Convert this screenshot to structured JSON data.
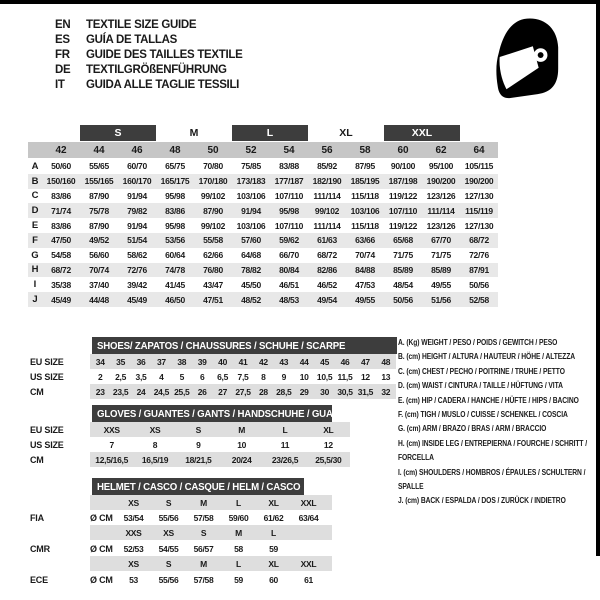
{
  "header": {
    "languages": [
      {
        "code": "EN",
        "title": "TEXTILE SIZE GUIDE"
      },
      {
        "code": "ES",
        "title": "GUÍA DE TALLAS"
      },
      {
        "code": "FR",
        "title": "GUIDE DES TAILLES TEXTILE"
      },
      {
        "code": "DE",
        "title": "TEXTILGRÖßENFÜHRUNG"
      },
      {
        "code": "IT",
        "title": "GUIDA ALLE TAGLIE TESSILI"
      }
    ],
    "helmet_icon": "full-face-helmet-icon"
  },
  "colors": {
    "bar_dark": "#3d3d3d",
    "column_band_gray": "#c6c6c6",
    "stripe_gray": "#e8e8e8",
    "sub_band_gray": "#dedede",
    "text": "#1a1a1a",
    "edge_black": "#000000"
  },
  "main_table": {
    "size_groups": [
      {
        "label": "S",
        "dark": true,
        "col": 3,
        "span": 2
      },
      {
        "label": "M",
        "dark": false,
        "col": 5,
        "span": 2
      },
      {
        "label": "L",
        "dark": true,
        "col": 7,
        "span": 2
      },
      {
        "label": "XL",
        "dark": false,
        "col": 9,
        "span": 2
      },
      {
        "label": "XXL",
        "dark": true,
        "col": 11,
        "span": 2
      }
    ],
    "columns": [
      "42",
      "44",
      "46",
      "48",
      "50",
      "52",
      "54",
      "56",
      "58",
      "60",
      "62",
      "64"
    ],
    "rows": [
      {
        "letter": "A",
        "values": [
          "50/60",
          "55/65",
          "60/70",
          "65/75",
          "70/80",
          "75/85",
          "83/88",
          "85/92",
          "87/95",
          "90/100",
          "95/100",
          "105/115"
        ]
      },
      {
        "letter": "B",
        "values": [
          "150/160",
          "155/165",
          "160/170",
          "165/175",
          "170/180",
          "173/183",
          "177/187",
          "182/190",
          "185/195",
          "187/198",
          "190/200",
          "190/200"
        ]
      },
      {
        "letter": "C",
        "values": [
          "83/86",
          "87/90",
          "91/94",
          "95/98",
          "99/102",
          "103/106",
          "107/110",
          "111/114",
          "115/118",
          "119/122",
          "123/126",
          "127/130"
        ]
      },
      {
        "letter": "D",
        "values": [
          "71/74",
          "75/78",
          "79/82",
          "83/86",
          "87/90",
          "91/94",
          "95/98",
          "99/102",
          "103/106",
          "107/110",
          "111/114",
          "115/119"
        ]
      },
      {
        "letter": "E",
        "values": [
          "83/86",
          "87/90",
          "91/94",
          "95/98",
          "99/102",
          "103/106",
          "107/110",
          "111/114",
          "115/118",
          "119/122",
          "123/126",
          "127/130"
        ]
      },
      {
        "letter": "F",
        "values": [
          "47/50",
          "49/52",
          "51/54",
          "53/56",
          "55/58",
          "57/60",
          "59/62",
          "61/63",
          "63/66",
          "65/68",
          "67/70",
          "68/72"
        ]
      },
      {
        "letter": "G",
        "values": [
          "54/58",
          "56/60",
          "58/62",
          "60/64",
          "62/66",
          "64/68",
          "66/70",
          "68/72",
          "70/74",
          "71/75",
          "71/75",
          "72/76"
        ]
      },
      {
        "letter": "H",
        "values": [
          "68/72",
          "70/74",
          "72/76",
          "74/78",
          "76/80",
          "78/82",
          "80/84",
          "82/86",
          "84/88",
          "85/89",
          "85/89",
          "87/91"
        ]
      },
      {
        "letter": "I",
        "values": [
          "35/38",
          "37/40",
          "39/42",
          "41/45",
          "43/47",
          "45/50",
          "46/51",
          "46/52",
          "47/53",
          "48/54",
          "49/55",
          "50/56"
        ]
      },
      {
        "letter": "J",
        "values": [
          "45/49",
          "44/48",
          "45/49",
          "46/50",
          "47/51",
          "48/52",
          "48/53",
          "49/54",
          "49/55",
          "50/56",
          "51/56",
          "52/58"
        ]
      }
    ]
  },
  "shoes": {
    "title": "SHOES/ ZAPATOS / CHAUSSURES / SCHUHE / SCARPE",
    "rows": [
      {
        "label": "EU SIZE",
        "shaded": true,
        "values": [
          "34",
          "35",
          "36",
          "37",
          "38",
          "39",
          "40",
          "41",
          "42",
          "43",
          "44",
          "45",
          "46",
          "47",
          "48"
        ]
      },
      {
        "label": "US SIZE",
        "shaded": false,
        "values": [
          "2",
          "2,5",
          "3,5",
          "4",
          "5",
          "6",
          "6,5",
          "7,5",
          "8",
          "9",
          "10",
          "10,5",
          "11,5",
          "12",
          "13"
        ]
      },
      {
        "label": "CM",
        "shaded": true,
        "values": [
          "23",
          "23,5",
          "24",
          "24,5",
          "25,5",
          "26",
          "27",
          "27,5",
          "28",
          "28,5",
          "29",
          "30",
          "30,5",
          "31,5",
          "32"
        ]
      }
    ]
  },
  "gloves": {
    "title": "GLOVES / GUANTES / GANTS / HANDSCHUHE / GUANTI",
    "rows": [
      {
        "label": "EU SIZE",
        "shaded": true,
        "values": [
          "XXS",
          "XS",
          "S",
          "M",
          "L",
          "XL"
        ]
      },
      {
        "label": "US SIZE",
        "shaded": false,
        "values": [
          "7",
          "8",
          "9",
          "10",
          "11",
          "12"
        ]
      },
      {
        "label": "CM",
        "shaded": true,
        "values": [
          "12,5/16,5",
          "16,5/19",
          "18/21,5",
          "20/24",
          "23/26,5",
          "25,5/30"
        ]
      }
    ]
  },
  "helmet": {
    "title": "HELMET / CASCO / CASQUE / HELM / CASCO",
    "unit": "Ø CM",
    "sections": [
      {
        "org": "FIA",
        "sizes": [
          "XS",
          "S",
          "M",
          "L",
          "XL",
          "XXL"
        ],
        "values": [
          "53/54",
          "55/56",
          "57/58",
          "59/60",
          "61/62",
          "63/64"
        ]
      },
      {
        "org": "CMR",
        "sizes": [
          "XXS",
          "XS",
          "S",
          "M",
          "L",
          ""
        ],
        "values": [
          "52/53",
          "54/55",
          "56/57",
          "58",
          "59",
          ""
        ]
      },
      {
        "org": "ECE",
        "sizes": [
          "XS",
          "S",
          "M",
          "L",
          "XL",
          "XXL"
        ],
        "values": [
          "53",
          "55/56",
          "57/58",
          "59",
          "60",
          "61"
        ]
      }
    ]
  },
  "legend": {
    "items": [
      "A. (Kg) WEIGHT / PESO / POIDS / GEWITCH / PESO",
      "B. (cm) HEIGHT / ALTURA / HAUTEUR / HÖHE / ALTEZZA",
      "C. (cm) CHEST / PECHO / POITRINE / TRUHE / PETTO",
      "D. (cm) WAIST / CINTURA / TAILLE / HÜFTUNG / VITA",
      "E. (cm) HIP / CADERA / HANCHE / HÜFTE / HIPS /  BACINO",
      "F.  (cm) TIGH / MUSLO / CUISSE / SCHENKEL / COSCIA",
      "G. (cm) ARM  / BRAZO / BRAS / ARM / BRACCIO",
      "H. (cm) INSIDE LEG / ENTREPIERNA / FOURCHE / SCHRITT / FORCELLA",
      "I.  (cm) SHOULDERS / HOMBROS / ÉPAULES / SCHULTERN / SPALLE",
      "J. (cm) BACK / ESPALDA / DOS / ZURÜCK / INDIETRO"
    ]
  }
}
